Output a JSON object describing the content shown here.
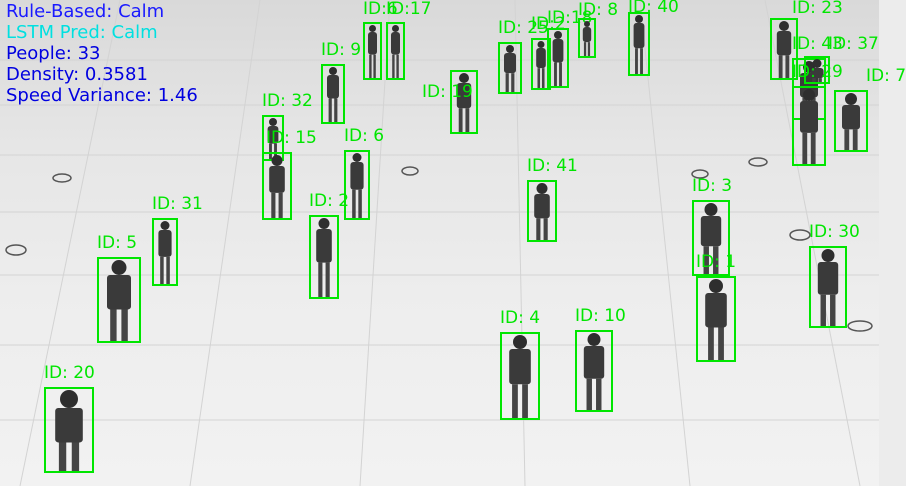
{
  "colors": {
    "box": "#00e600",
    "rule_based": "#1a1aff",
    "lstm": "#00e0e0",
    "stats": "#0000e0"
  },
  "overlay": {
    "rule_based": "Rule-Based: Calm",
    "lstm_pred": "LSTM Pred: Calm",
    "people": "People: 33",
    "density": "Density: 0.3581",
    "speed_variance": "Speed Variance: 1.46"
  },
  "detections": [
    {
      "id": "ID: 9"
    },
    {
      "id": "ID:6"
    },
    {
      "id": "ID:17"
    },
    {
      "id": "ID: 25"
    },
    {
      "id": "ID:2"
    },
    {
      "id": "ID:18"
    },
    {
      "id": "ID: 8"
    },
    {
      "id": "ID: 40"
    },
    {
      "id": "ID: 32"
    },
    {
      "id": "ID: 15"
    },
    {
      "id": "ID: 6"
    },
    {
      "id": "ID: 19"
    },
    {
      "id": "ID: 41"
    },
    {
      "id": "ID: 2"
    },
    {
      "id": "ID: 31"
    },
    {
      "id": "ID: 5"
    },
    {
      "id": "ID: 3"
    },
    {
      "id": "ID: 1"
    },
    {
      "id": "ID: 30"
    },
    {
      "id": "ID: 4"
    },
    {
      "id": "ID: 10"
    },
    {
      "id": "ID: 20"
    },
    {
      "id": "ID: 23"
    },
    {
      "id": "ID: 43"
    },
    {
      "id": "ID: 37"
    },
    {
      "id": "ID: 29"
    },
    {
      "id": "ID: 7"
    }
  ]
}
